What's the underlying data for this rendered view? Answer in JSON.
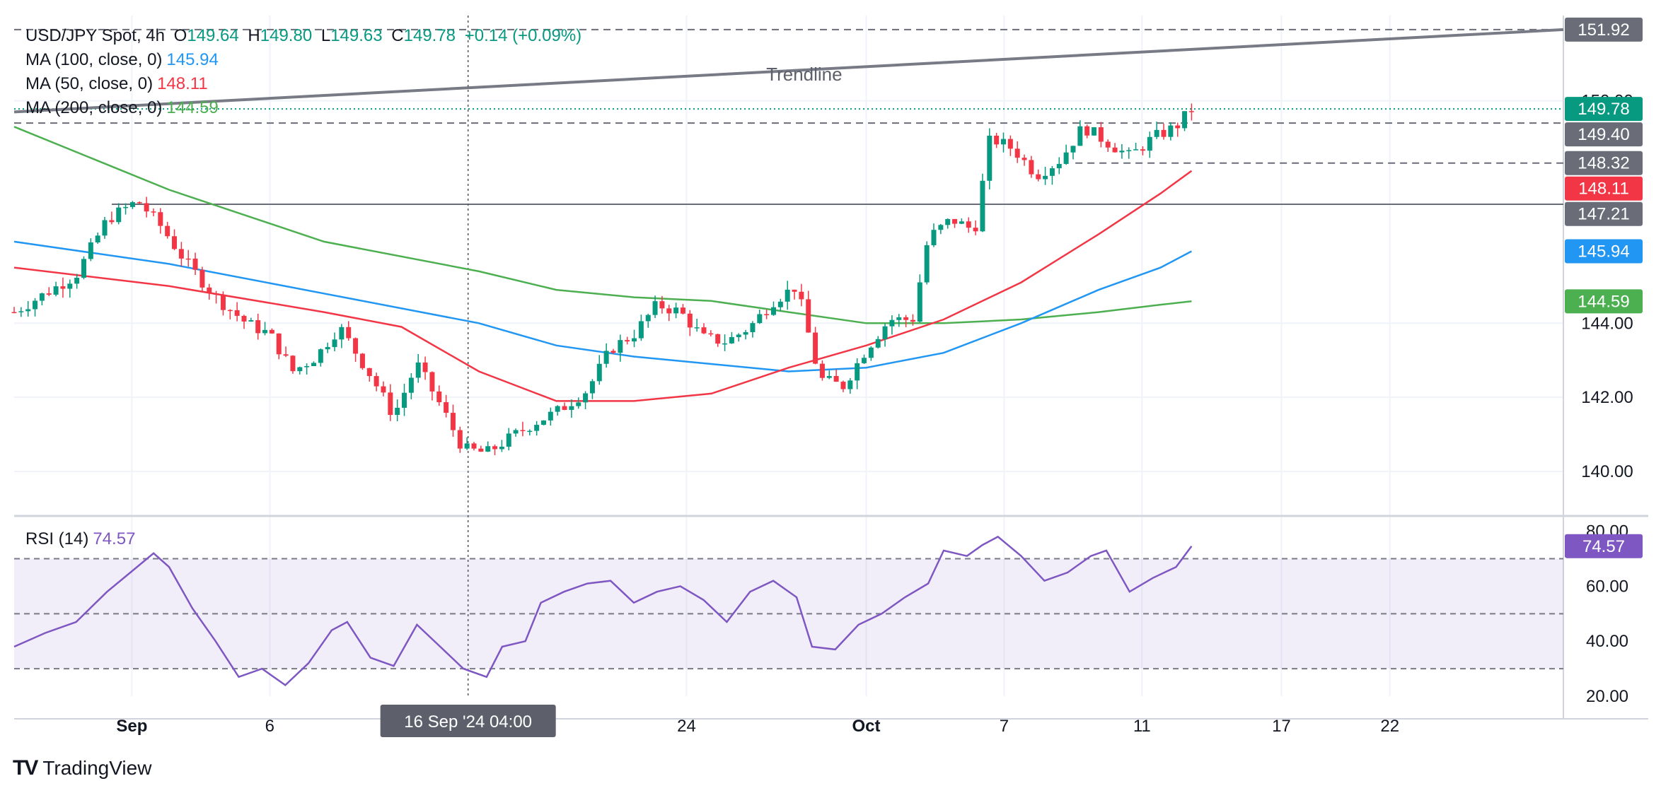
{
  "header": {
    "symbol": "USD/JPY Spot, 4h",
    "o_label": "O",
    "o": "149.64",
    "h_label": "H",
    "h": "149.80",
    "l_label": "L",
    "l": "149.63",
    "c_label": "C",
    "c": "149.78",
    "change": "+0.14 (+0.09%)"
  },
  "indicators": [
    {
      "label": "MA (100, close, 0)",
      "value": "145.94",
      "color": "#2196f3"
    },
    {
      "label": "MA (50, close, 0)",
      "value": "148.11",
      "color": "#f23645"
    },
    {
      "label": "MA (200, close, 0)",
      "value": "144.59",
      "color": "#4caf50"
    }
  ],
  "rsi_legend": {
    "label": "RSI (14)",
    "value": "74.57"
  },
  "brand": {
    "name": "TradingView"
  },
  "colors": {
    "up": "#089981",
    "down": "#f23645",
    "rsi": "#7e57c2",
    "grid": "#f0f3fa",
    "trendline": "#787b86"
  },
  "chart_data": {
    "type": "candlestick",
    "title": "USD/JPY Spot, 4h",
    "price_axis": {
      "ticks": [
        "140.00",
        "142.00",
        "144.00",
        "150.00"
      ],
      "ylim": [
        138.8,
        152.3
      ]
    },
    "time_axis": {
      "labels": [
        "Sep",
        "6",
        "24",
        "Oct",
        "7",
        "11",
        "17",
        "22"
      ],
      "xlim": [
        0,
        100
      ],
      "label_positions": [
        7.6,
        16.5,
        43.4,
        55.0,
        63.9,
        72.8,
        81.8,
        88.8
      ]
    },
    "crosshair": {
      "label": "16 Sep '24   04:00",
      "x": 29.3
    },
    "price_labels": [
      {
        "value": "151.92",
        "color": "#6a6d78"
      },
      {
        "value": "149.78",
        "color": "#089981"
      },
      {
        "value": "149.40",
        "color": "#6a6d78"
      },
      {
        "value": "148.32",
        "color": "#6a6d78"
      },
      {
        "value": "148.11",
        "color": "#f23645"
      },
      {
        "value": "147.21",
        "color": "#6a6d78"
      },
      {
        "value": "145.94",
        "color": "#2196f3"
      },
      {
        "value": "144.59",
        "color": "#4caf50"
      }
    ],
    "horizontal_levels": [
      {
        "price": 151.92,
        "style": "dashed"
      },
      {
        "price": 149.4,
        "style": "dashed"
      },
      {
        "price": 148.32,
        "style": "dashed",
        "x_from": 68.5
      },
      {
        "price": 147.21,
        "style": "solid",
        "x_from": 6.3
      },
      {
        "price": 149.78,
        "style": "dotted"
      }
    ],
    "trendline": {
      "label": "Trendline",
      "points": [
        [
          0,
          149.7
        ],
        [
          100,
          151.92
        ]
      ]
    },
    "ohlc_anchor": [
      [
        0,
        144.3
      ],
      [
        2,
        144.8
      ],
      [
        4,
        145.3
      ],
      [
        6,
        146.8
      ],
      [
        8,
        147.3
      ],
      [
        9.5,
        146.6
      ],
      [
        11,
        145.7
      ],
      [
        13,
        144.7
      ],
      [
        15,
        144.0
      ],
      [
        16.5,
        143.7
      ],
      [
        18,
        142.7
      ],
      [
        19.5,
        143.1
      ],
      [
        21,
        143.9
      ],
      [
        23,
        142.6
      ],
      [
        24.5,
        141.5
      ],
      [
        26,
        142.9
      ],
      [
        27.5,
        141.8
      ],
      [
        29,
        140.6
      ],
      [
        30.5,
        140.5
      ],
      [
        32,
        140.9
      ],
      [
        33.5,
        141.3
      ],
      [
        35,
        141.6
      ],
      [
        37,
        142.2
      ],
      [
        38.5,
        143.3
      ],
      [
        40,
        143.7
      ],
      [
        41.5,
        144.5
      ],
      [
        43,
        144.3
      ],
      [
        44.5,
        143.6
      ],
      [
        46,
        143.5
      ],
      [
        47.5,
        143.9
      ],
      [
        49,
        144.6
      ],
      [
        50.5,
        145.0
      ],
      [
        52,
        142.5
      ],
      [
        53.5,
        142.3
      ],
      [
        55,
        143.3
      ],
      [
        56.5,
        144.1
      ],
      [
        58,
        144.1
      ],
      [
        59,
        146.3
      ],
      [
        60.5,
        146.8
      ],
      [
        62,
        146.5
      ],
      [
        63,
        149.0
      ],
      [
        64.5,
        148.7
      ],
      [
        66,
        148.0
      ],
      [
        67.5,
        148.4
      ],
      [
        69,
        149.3
      ],
      [
        70.5,
        148.9
      ],
      [
        72,
        148.5
      ],
      [
        73.5,
        149.0
      ],
      [
        75,
        149.3
      ],
      [
        76,
        149.78
      ]
    ],
    "candle_range_x": [
      0,
      76
    ],
    "ma50": [
      [
        0,
        145.5
      ],
      [
        10,
        145.0
      ],
      [
        20,
        144.3
      ],
      [
        25,
        143.9
      ],
      [
        30,
        142.7
      ],
      [
        35,
        141.9
      ],
      [
        40,
        141.9
      ],
      [
        45,
        142.1
      ],
      [
        50,
        142.8
      ],
      [
        55,
        143.4
      ],
      [
        60,
        144.1
      ],
      [
        65,
        145.1
      ],
      [
        70,
        146.4
      ],
      [
        74,
        147.5
      ],
      [
        76,
        148.11
      ]
    ],
    "ma100": [
      [
        0,
        146.2
      ],
      [
        10,
        145.6
      ],
      [
        20,
        144.8
      ],
      [
        30,
        144.0
      ],
      [
        35,
        143.4
      ],
      [
        40,
        143.1
      ],
      [
        45,
        142.9
      ],
      [
        50,
        142.7
      ],
      [
        55,
        142.8
      ],
      [
        60,
        143.2
      ],
      [
        65,
        144.0
      ],
      [
        70,
        144.9
      ],
      [
        74,
        145.5
      ],
      [
        76,
        145.94
      ]
    ],
    "ma200": [
      [
        0,
        149.3
      ],
      [
        10,
        147.6
      ],
      [
        20,
        146.2
      ],
      [
        30,
        145.4
      ],
      [
        35,
        144.9
      ],
      [
        40,
        144.7
      ],
      [
        45,
        144.6
      ],
      [
        50,
        144.3
      ],
      [
        55,
        144.0
      ],
      [
        60,
        144.0
      ],
      [
        65,
        144.1
      ],
      [
        70,
        144.3
      ],
      [
        74,
        144.5
      ],
      [
        76,
        144.59
      ]
    ],
    "rsi": {
      "ticks": [
        "20.00",
        "40.00",
        "60.00",
        "80.00"
      ],
      "ylim": [
        20,
        83
      ],
      "bands": [
        30,
        50,
        70
      ],
      "values": [
        [
          0,
          38
        ],
        [
          2,
          43
        ],
        [
          4,
          47
        ],
        [
          6,
          58
        ],
        [
          7.5,
          65
        ],
        [
          9,
          72
        ],
        [
          10,
          67
        ],
        [
          11.5,
          52
        ],
        [
          13,
          40
        ],
        [
          14.5,
          27
        ],
        [
          16,
          30
        ],
        [
          17.5,
          24
        ],
        [
          19,
          32
        ],
        [
          20.5,
          44
        ],
        [
          21.5,
          47
        ],
        [
          23,
          34
        ],
        [
          24.5,
          31
        ],
        [
          26,
          46
        ],
        [
          27.5,
          38
        ],
        [
          29,
          30
        ],
        [
          30.5,
          27
        ],
        [
          31.5,
          38
        ],
        [
          33,
          40
        ],
        [
          34,
          54
        ],
        [
          35.5,
          58
        ],
        [
          37,
          61
        ],
        [
          38.5,
          62
        ],
        [
          40,
          54
        ],
        [
          41.5,
          58
        ],
        [
          43,
          60
        ],
        [
          44.5,
          55
        ],
        [
          46,
          47
        ],
        [
          47.5,
          58
        ],
        [
          49,
          62
        ],
        [
          50.5,
          56
        ],
        [
          51.5,
          38
        ],
        [
          53,
          37
        ],
        [
          54.5,
          46
        ],
        [
          56,
          50
        ],
        [
          57.5,
          56
        ],
        [
          59,
          61
        ],
        [
          60,
          73
        ],
        [
          61.5,
          71
        ],
        [
          62.5,
          75
        ],
        [
          63.5,
          78
        ],
        [
          65,
          71
        ],
        [
          66.5,
          62
        ],
        [
          68,
          65
        ],
        [
          69.5,
          71
        ],
        [
          70.5,
          73
        ],
        [
          72,
          58
        ],
        [
          73.5,
          63
        ],
        [
          75,
          67
        ],
        [
          76,
          74.57
        ]
      ]
    }
  }
}
